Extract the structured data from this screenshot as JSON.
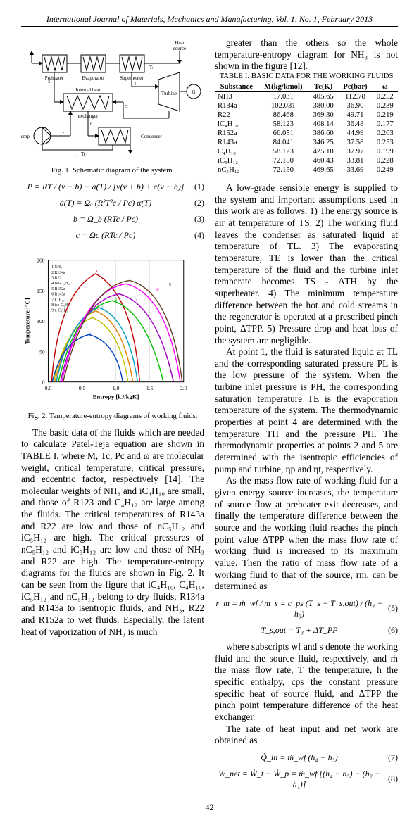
{
  "header": "International Journal of Materials, Mechanics and Manufacturing, Vol. 1, No. 1, February 2013",
  "fig1_caption": "Fig. 1. Schematic diagram of the system.",
  "fig2_caption": "Fig. 2. Temperature-entropy diagrams of working fluids.",
  "diagram_labels": {
    "heat_source": "Heat source",
    "preheater": "Preheater",
    "evaporator": "Evaporator",
    "superheater": "Superheater",
    "turbine": "Turbine",
    "ihe": "Internal heat exchanger",
    "pump": "Pump",
    "condenser": "Condenser",
    "g": "G",
    "tc": "Tᴄ",
    "th": "Tₕ"
  },
  "equations": {
    "eq1": "P = RT / (v − b) − a(T) / [v(v + b) + c(v − b)]",
    "eq2": "a(T) = Ωₐ (R²T²c / Pc) α(T)",
    "eq3": "b = Ω_b (RTc / Pc)",
    "eq4": "c = Ωc (RTc / Pc)",
    "eq5": "r_m = ṁ_wf / ṁ_s = c_ps (T_s − T_s,out) / (h₄ − h₃)",
    "eq6": "T_s,out = T₃ + ΔT_PP",
    "eq7": "Q̇_in = ṁ_wf (h₄ − h₃)",
    "eq8": "Ẇ_net = Ẇ_t − Ẇ_p = ṁ_wf [(h₄ − h₅) − (h₂ − h₁)]"
  },
  "eq_nums": [
    "(1)",
    "(2)",
    "(3)",
    "(4)",
    "(5)",
    "(6)",
    "(7)",
    "(8)"
  ],
  "table": {
    "title": "TABLE I: BASIC DATA FOR THE WORKING FLUIDS",
    "headers": [
      "Substance",
      "M(kg/kmol)",
      "Tc(K)",
      "Pc(bar)",
      "ω"
    ],
    "rows": [
      [
        "NH3",
        "17.031",
        "405.65",
        "112.78",
        "0.252"
      ],
      [
        "R134a",
        "102.031",
        "380.00",
        "36.90",
        "0.239"
      ],
      [
        "R22",
        "86.468",
        "369.30",
        "49.71",
        "0.219"
      ],
      [
        "iC₄H₁₀",
        "58.123",
        "408.14",
        "36.48",
        "0.177"
      ],
      [
        "R152a",
        "66.051",
        "386.60",
        "44.99",
        "0.263"
      ],
      [
        "R143a",
        "84.041",
        "346.25",
        "37.58",
        "0.253"
      ],
      [
        "C₄H₁₀",
        "58.123",
        "425.18",
        "37.97",
        "0.199"
      ],
      [
        "iC₅H₁₂",
        "72.150",
        "460.43",
        "33.81",
        "0.228"
      ],
      [
        "nC₅H₁₂",
        "72.150",
        "469.65",
        "33.69",
        "0.249"
      ]
    ]
  },
  "chart": {
    "xlabel": "Entropy [kJ/kgK]",
    "ylabel": "Temperature [°C]",
    "xlim": [
      0.0,
      2.0
    ],
    "ylim": [
      0,
      200
    ],
    "xticks": [
      0.0,
      0.5,
      1.0,
      1.5,
      2.0
    ],
    "yticks": [
      0,
      50,
      100,
      150,
      200
    ],
    "legend": [
      "1 NH₃",
      "2 R134a",
      "3 R22",
      "4 iso-C₄H₁₀",
      "5 R152a",
      "6 R143a",
      "7 C₄H₁₀",
      "8 iso-C₅H₁₂",
      "9 n-C₅H₁₂"
    ],
    "colors": [
      "#c00000",
      "#e08000",
      "#c0c000",
      "#00c000",
      "#00a0c0",
      "#0040c0",
      "#a000c0",
      "#ff00ff",
      "#604020"
    ],
    "grid_color": "#cccccc",
    "bg": "#ffffff"
  },
  "para_left": "The basic data of the fluids which are needed to calculate Patel-Teja equation are shown in TABLE I, where M, Tc, Pc and ω are molecular weight, critical temperature, critical pressure, and eccentric factor, respectively [14]. The molecular weights of NH₃ and iC₄H₁₀ are small, and those of R123 and C₄H₁₂ are large among the fluids. The critical temperatures of R143a and R22 are low and those of nC₅H₁₂ and iC₅H₁₂ are high. The critical pressures of nC₅H₁₂ and iC₅H₁₂ are low and those of NH₃ and R22 are high. The temperature-entropy diagrams for the fluids are shown in Fig. 2. It can be seen from the figure that iC₄H₁₀, C₄H₁₀, iC₅H₁₂ and nC₅H₁₂ belong to dry fluids, R134a and R143a to isentropic fluids, and NH₃, R22 and R152a to wet fluids. Especially, the latent heat of vaporization of NH₃ is much",
  "para_right_top": "greater than the others so the whole temperature-entropy diagram for NH₃ is not shown in the figure [12].",
  "para_right_1": "A low-grade sensible energy is supplied to the system and important assumptions used in this work are as follows. 1) The energy source is air at temperature of TS. 2) The working fluid leaves the condenser as saturated liquid at temperature of TL. 3) The evaporating temperature, TE is lower than the critical temperature of the fluid and the turbine inlet temperate becomes TS - ΔTH by the superheater. 4) The minimum temperature difference between the hot and cold streams in the regenerator is operated at a prescribed pinch point, ΔTPP. 5) Pressure drop and heat loss of the system are negligible.",
  "para_right_2": "At point 1, the fluid is saturated liquid at TL and the corresponding saturated pressure PL is the low pressure of the system. When the turbine inlet pressure is PH, the corresponding saturation temperature TE is the evaporation temperature of the system. The thermodynamic properties at point 4 are determined with the temperature TH and the pressure PH. The thermodynamic properties at points 2 and 5 are determined with the isentropic efficiencies of pump and turbine, ηp and ηt, respectively.",
  "para_right_3": "As the mass flow rate of working fluid for a given energy source increases, the temperature of source flow at preheater exit decreases, and finally the temperature difference between the source and the working fluid reaches the pinch point value ΔTPP when the mass flow rate of working fluid is increased to its maximum value. Then the ratio of mass flow rate of a working fluid to that of the source, rm, can be determined as",
  "para_right_4": "where subscripts wf and s denote the working fluid and the source fluid, respectively, and ṁ the mass flow rate, T the temperature, h the specific enthalpy, cps the constant pressure specific heat of source fluid, and ΔTPP the pinch point temperature difference of the heat exchanger.",
  "para_right_5": "The rate of heat input and net work are obtained as",
  "page_number": "42"
}
